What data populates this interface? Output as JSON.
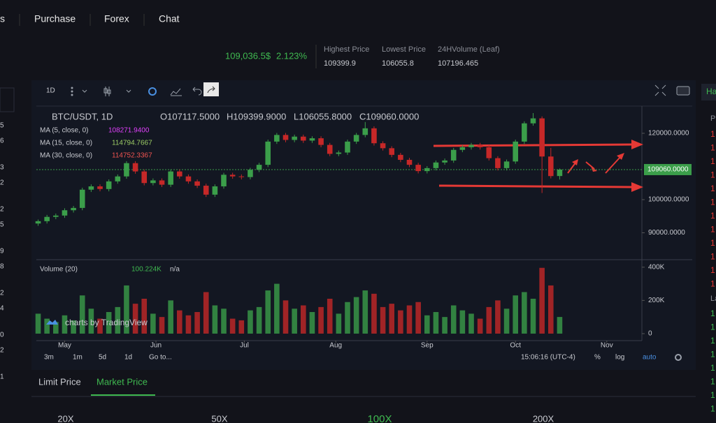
{
  "nav": [
    "s",
    "Purchase",
    "Forex",
    "Chat"
  ],
  "ticker": {
    "price": "109,036.5$",
    "change": "2.123%",
    "stats": [
      {
        "label": "Highest Price",
        "value": "109399.9"
      },
      {
        "label": "Lowest Price",
        "value": "106055.8"
      },
      {
        "label": "24HVolume (Leaf)",
        "value": "107196.465"
      }
    ]
  },
  "toolbar": {
    "interval": "1D"
  },
  "chart": {
    "symbol": "BTC/USDT, 1D",
    "ohlc": [
      "O107117.5000",
      "H109399.9000",
      "L106055.8000",
      "C109060.0000"
    ],
    "indicators": [
      {
        "label": "MA (5, close, 0)",
        "value": "108271.9400",
        "color": "#e040fb"
      },
      {
        "label": "MA (15, close, 0)",
        "value": "114794.7667",
        "color": "#9ccc65"
      },
      {
        "label": "MA (30, close, 0)",
        "value": "114752.3367",
        "color": "#ef5350"
      }
    ],
    "up_color": "#3b9e4a",
    "down_color": "#c62828",
    "ylim": [
      81900,
      128200
    ],
    "yticks": [
      {
        "value": 90000,
        "label": "90000.0000"
      },
      {
        "value": 100000,
        "label": "100000.0000"
      },
      {
        "value": 120000,
        "label": "120000.0000"
      }
    ],
    "last_price": {
      "value": 109060,
      "label": "109060.0000"
    },
    "xlim": [
      -0.2,
      68.3
    ],
    "xticks": [
      {
        "value": 3,
        "label": "May"
      },
      {
        "value": 13.33,
        "label": "Jun"
      },
      {
        "value": 23.33,
        "label": "Jul"
      },
      {
        "value": 33.67,
        "label": "Aug"
      },
      {
        "value": 44,
        "label": "Sep"
      },
      {
        "value": 54,
        "label": "Oct"
      },
      {
        "value": 64.33,
        "label": "Nov"
      }
    ],
    "candles": [
      [
        92800,
        94000,
        92100,
        93500
      ],
      [
        93500,
        95400,
        92800,
        94800
      ],
      [
        94800,
        95800,
        94100,
        95200
      ],
      [
        95200,
        97400,
        94500,
        96800
      ],
      [
        96800,
        98100,
        96100,
        97500
      ],
      [
        97500,
        103600,
        96800,
        103000
      ],
      [
        103000,
        104600,
        102300,
        104000
      ],
      [
        104000,
        104600,
        102500,
        103200
      ],
      [
        103200,
        106100,
        102500,
        105500
      ],
      [
        105500,
        107600,
        104800,
        107000
      ],
      [
        107000,
        111600,
        106300,
        111000
      ],
      [
        111000,
        111600,
        107800,
        108500
      ],
      [
        108500,
        109100,
        104300,
        105000
      ],
      [
        105000,
        106400,
        104300,
        105800
      ],
      [
        105800,
        106400,
        103800,
        104500
      ],
      [
        104500,
        109100,
        103800,
        108500
      ],
      [
        108500,
        109100,
        106300,
        107000
      ],
      [
        107000,
        107600,
        104800,
        105500
      ],
      [
        105500,
        106100,
        103500,
        104200
      ],
      [
        104200,
        104800,
        100800,
        101500
      ],
      [
        101500,
        104600,
        100800,
        104000
      ],
      [
        104000,
        108100,
        103300,
        107500
      ],
      [
        107500,
        108100,
        106300,
        107000
      ],
      [
        107000,
        107600,
        106100,
        106800
      ],
      [
        106800,
        109600,
        106100,
        109000
      ],
      [
        109000,
        111100,
        108300,
        110500
      ],
      [
        110500,
        118100,
        109800,
        117500
      ],
      [
        117500,
        120100,
        116800,
        119500
      ],
      [
        119500,
        120100,
        117300,
        118000
      ],
      [
        118000,
        119600,
        117300,
        119000
      ],
      [
        119000,
        119600,
        117100,
        117800
      ],
      [
        117800,
        119100,
        117100,
        118500
      ],
      [
        118500,
        119100,
        115800,
        116500
      ],
      [
        116500,
        117100,
        113100,
        113800
      ],
      [
        113800,
        114800,
        113100,
        114200
      ],
      [
        114200,
        118100,
        113500,
        117500
      ],
      [
        117500,
        120100,
        116800,
        119500
      ],
      [
        119500,
        123400,
        118800,
        121500
      ],
      [
        121500,
        122100,
        116300,
        117000
      ],
      [
        117000,
        117600,
        114800,
        115500
      ],
      [
        115500,
        116100,
        112800,
        113500
      ],
      [
        113500,
        114100,
        111300,
        112000
      ],
      [
        112000,
        112600,
        109800,
        110500
      ],
      [
        110500,
        111100,
        107900,
        108600
      ],
      [
        108600,
        110100,
        107900,
        109500
      ],
      [
        109500,
        111800,
        108800,
        111200
      ],
      [
        111200,
        112400,
        110500,
        111800
      ],
      [
        111800,
        115600,
        111100,
        115000
      ],
      [
        115000,
        116400,
        114300,
        115800
      ],
      [
        115800,
        117100,
        115100,
        116500
      ],
      [
        116500,
        117100,
        115100,
        115800
      ],
      [
        115800,
        116400,
        111800,
        112500
      ],
      [
        112500,
        113100,
        108800,
        109500
      ],
      [
        109500,
        112100,
        108800,
        111500
      ],
      [
        111500,
        118100,
        110800,
        117500
      ],
      [
        117500,
        123600,
        116800,
        123000
      ],
      [
        123000,
        126100,
        122300,
        124500
      ],
      [
        124500,
        125100,
        102000,
        113000
      ],
      [
        113000,
        115600,
        106400,
        107100
      ],
      [
        107117.5,
        109399.9,
        106055.8,
        109060
      ]
    ],
    "volume": {
      "title": "Volume (20)",
      "value": "100.224K",
      "extra": "n/a",
      "ylim": [
        -17000,
        420000
      ],
      "yticks": [
        0,
        {
          "value": 200000,
          "label": "200K"
        },
        {
          "value": 400000,
          "label": "400K"
        }
      ],
      "values": [
        120000,
        90000,
        70000,
        110000,
        80000,
        230000,
        150000,
        90000,
        130000,
        160000,
        290000,
        180000,
        210000,
        120000,
        100000,
        200000,
        140000,
        110000,
        130000,
        250000,
        170000,
        150000,
        90000,
        80000,
        140000,
        160000,
        260000,
        300000,
        200000,
        150000,
        170000,
        130000,
        160000,
        210000,
        120000,
        190000,
        220000,
        260000,
        240000,
        160000,
        180000,
        140000,
        170000,
        190000,
        110000,
        130000,
        100000,
        170000,
        140000,
        120000,
        90000,
        160000,
        200000,
        150000,
        230000,
        250000,
        210000,
        396000,
        290000,
        100224
      ]
    },
    "watermark": "charts by TradingView",
    "ranges": [
      "3m",
      "1m",
      "5d",
      "1d",
      "Go to..."
    ],
    "clock": "15:06:16 (UTC-4)",
    "scale_options": [
      "%",
      "log",
      "auto"
    ]
  },
  "order_tabs": [
    "Limit Price",
    "Market Price"
  ],
  "leverage": [
    "20X",
    "50X",
    "100X",
    "200X"
  ],
  "left_column": [
    "5",
    "6",
    "3",
    "2",
    "2",
    "5",
    "9",
    "8",
    "2",
    "4",
    "0",
    "2",
    "1"
  ],
  "right_column": {
    "tab": "Ha",
    "header": "P",
    "asks": [
      "1",
      "1",
      "1",
      "1",
      "1",
      "1",
      "1",
      "1",
      "1",
      "1",
      "1",
      "1"
    ],
    "mid": "La",
    "bids": [
      "1",
      "1",
      "1",
      "1",
      "1",
      "1",
      "1",
      "1"
    ]
  }
}
